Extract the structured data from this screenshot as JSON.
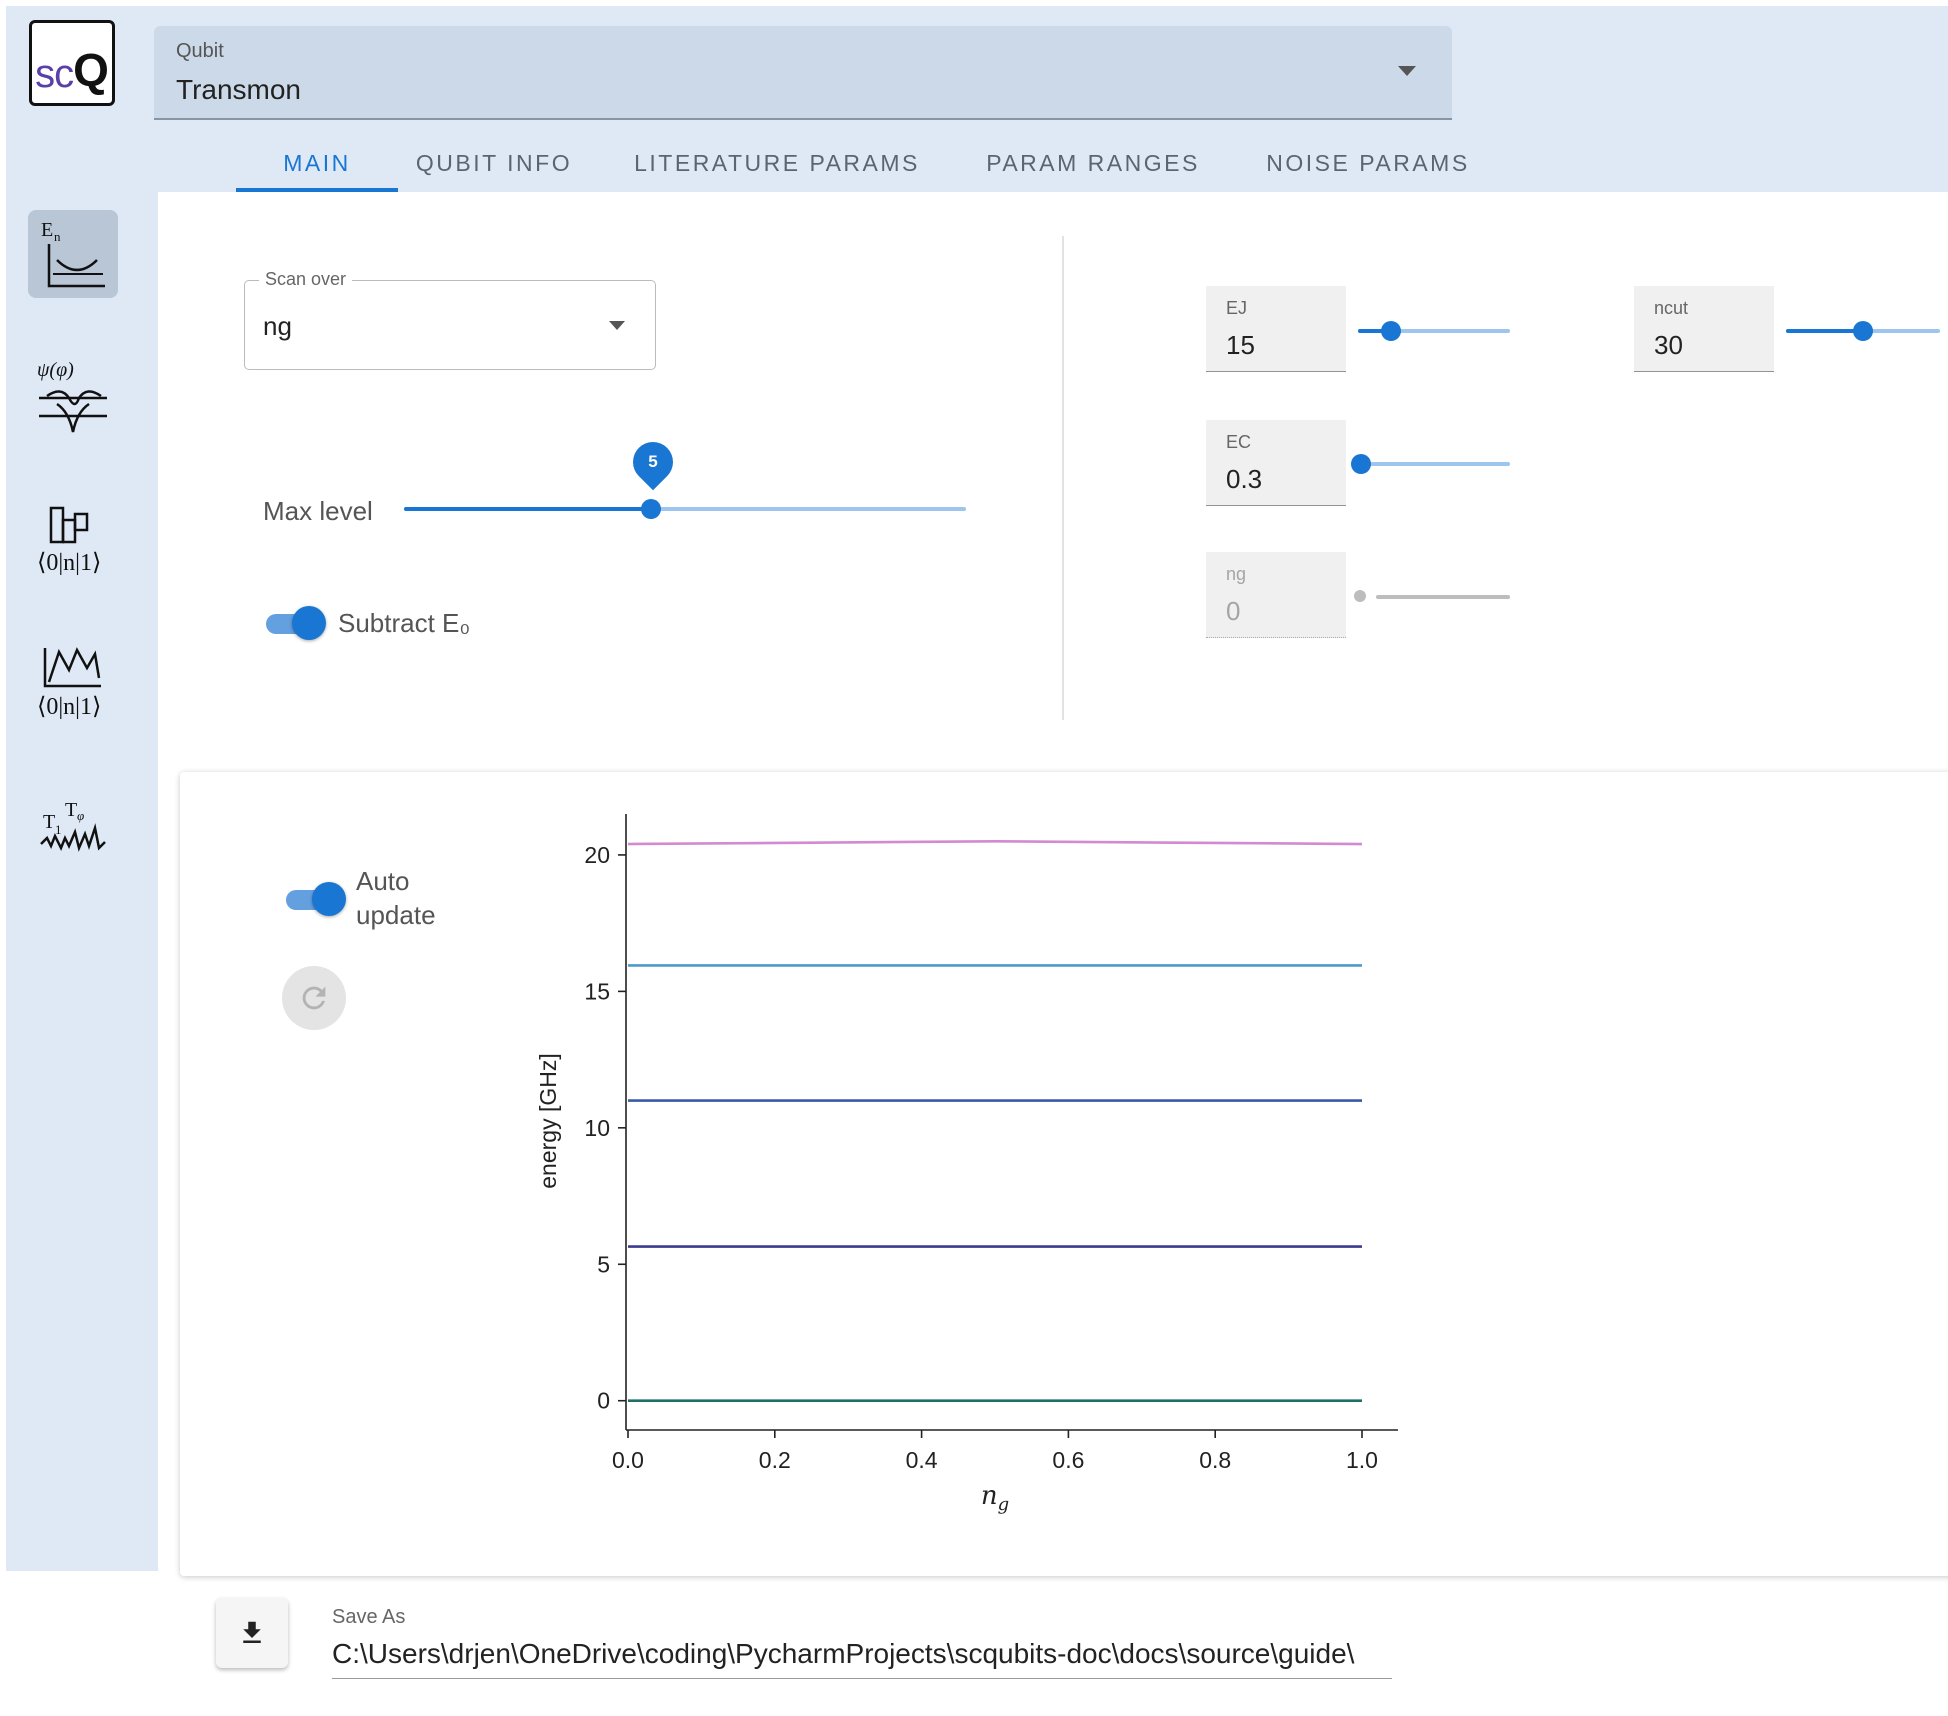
{
  "logo": {
    "sc": "sc",
    "q": "Q"
  },
  "sidebar": {
    "items": [
      {
        "icon": "energy-spectrum-icon",
        "active": true
      },
      {
        "icon": "wavefunction-icon",
        "active": false
      },
      {
        "icon": "matrix-elements-icon",
        "active": false
      },
      {
        "icon": "matrix-element-scan-icon",
        "active": false
      },
      {
        "icon": "coherence-times-icon",
        "active": false
      }
    ]
  },
  "qubit_select": {
    "label": "Qubit",
    "value": "Transmon"
  },
  "tabs": [
    {
      "label": "MAIN",
      "active": true
    },
    {
      "label": "QUBIT INFO",
      "active": false
    },
    {
      "label": "LITERATURE PARAMS",
      "active": false
    },
    {
      "label": "PARAM RANGES",
      "active": false
    },
    {
      "label": "NOISE PARAMS",
      "active": false
    }
  ],
  "scan_over": {
    "label": "Scan over",
    "value": "ng"
  },
  "max_level": {
    "label": "Max level",
    "value": "5",
    "fraction": 0.44
  },
  "subtract": {
    "label": "Subtract E₀",
    "on": true
  },
  "params": {
    "EJ": {
      "label": "EJ",
      "value": "15",
      "fraction": 0.22
    },
    "ncut": {
      "label": "ncut",
      "value": "30",
      "fraction": 0.5
    },
    "EC": {
      "label": "EC",
      "value": "0.3",
      "fraction": 0.02
    },
    "ng": {
      "label": "ng",
      "value": "0",
      "fraction": 0.0
    }
  },
  "auto_update": {
    "label_line1": "Auto",
    "label_line2": "update",
    "on": true
  },
  "save_as": {
    "label": "Save As",
    "value": "C:\\Users\\drjen\\OneDrive\\coding\\PycharmProjects\\scqubits-doc\\docs\\source\\guide\\"
  },
  "chart_data": {
    "type": "line",
    "title": "",
    "xlabel": "n",
    "xlabel_subscript": "g",
    "ylabel": "energy [GHz]",
    "xlim": [
      0.0,
      1.0
    ],
    "ylim": [
      -1.0,
      21.5
    ],
    "x_ticks": [
      "0.0",
      "0.2",
      "0.4",
      "0.6",
      "0.8",
      "1.0"
    ],
    "y_ticks": [
      "0",
      "5",
      "10",
      "15",
      "20"
    ],
    "x": [
      0.0,
      0.25,
      0.5,
      0.75,
      1.0
    ],
    "series": [
      {
        "values": [
          0.0,
          0.0,
          0.0,
          0.0,
          0.0
        ],
        "color": "#1f6f6a"
      },
      {
        "values": [
          5.65,
          5.65,
          5.65,
          5.65,
          5.65
        ],
        "color": "#3b3b8f"
      },
      {
        "values": [
          11.0,
          11.0,
          11.0,
          11.0,
          11.0
        ],
        "color": "#3a5aa8"
      },
      {
        "values": [
          15.95,
          15.95,
          15.95,
          15.95,
          15.95
        ],
        "color": "#4e9ac9"
      },
      {
        "values": [
          20.4,
          20.45,
          20.5,
          20.45,
          20.4
        ],
        "color": "#d48ad0"
      }
    ]
  }
}
